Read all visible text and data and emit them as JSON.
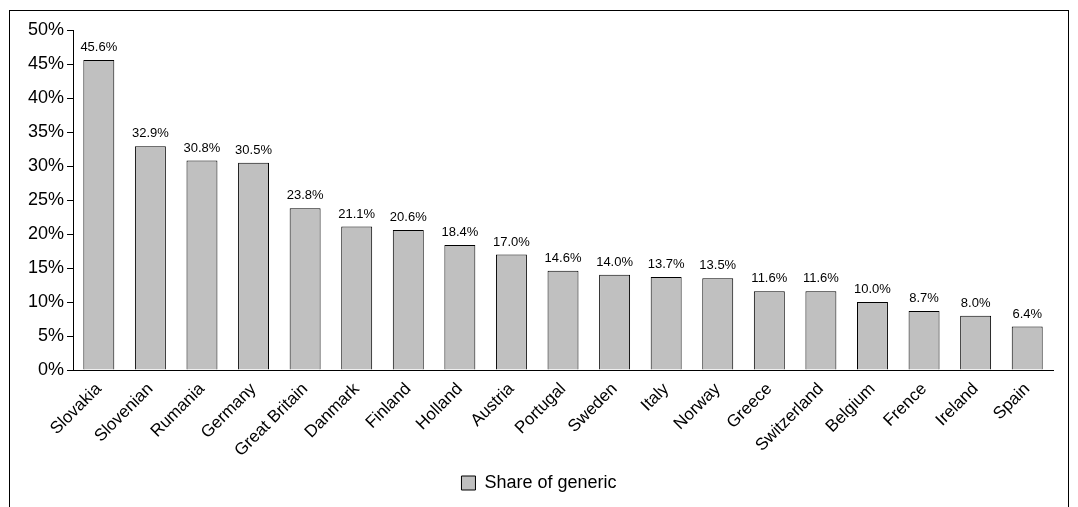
{
  "chart_data": {
    "type": "bar",
    "categories": [
      "Slovakia",
      "Slovenian",
      "Rumania",
      "Germany",
      "Great Britain",
      "Danmark",
      "Finland",
      "Holland",
      "Austria",
      "Portugal",
      "Sweden",
      "Italy",
      "Norway",
      "Greece",
      "Switzerland",
      "Belgium",
      "Frence",
      "Ireland",
      "Spain"
    ],
    "series": [
      {
        "name": "Share of generic",
        "color": "#c0c0c0",
        "values": [
          45.6,
          32.9,
          30.8,
          30.5,
          23.8,
          21.1,
          20.6,
          18.4,
          17.0,
          14.6,
          14.0,
          13.7,
          13.5,
          11.6,
          11.6,
          10.0,
          8.7,
          8.0,
          6.4
        ],
        "value_labels": [
          "45.6%",
          "32.9%",
          "30.8%",
          "30.5%",
          "23.8%",
          "21.1%",
          "20.6%",
          "18.4%",
          "17.0%",
          "14.6%",
          "14.0%",
          "13.7%",
          "13.5%",
          "11.6%",
          "11.6%",
          "10.0%",
          "8.7%",
          "8.0%",
          "6.4%"
        ]
      }
    ],
    "ylim": [
      0,
      50
    ],
    "yticks": [
      {
        "value": 0,
        "label": "0%"
      },
      {
        "value": 5,
        "label": "5%"
      },
      {
        "value": 10,
        "label": "10%"
      },
      {
        "value": 15,
        "label": "15%"
      },
      {
        "value": 20,
        "label": "20%"
      },
      {
        "value": 25,
        "label": "25%"
      },
      {
        "value": 30,
        "label": "30%"
      },
      {
        "value": 35,
        "label": "35%"
      },
      {
        "value": 40,
        "label": "40%"
      },
      {
        "value": 45,
        "label": "45%"
      },
      {
        "value": 50,
        "label": "50%"
      }
    ],
    "grid": false,
    "legend": "bottom"
  }
}
